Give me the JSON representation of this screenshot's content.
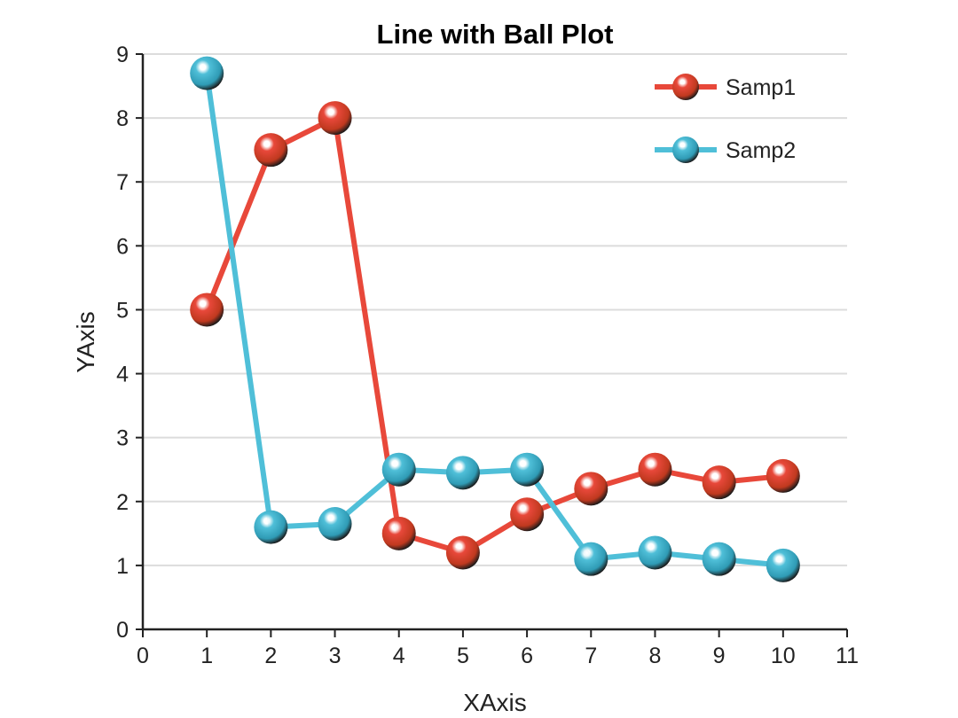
{
  "chart_data": {
    "type": "line",
    "title": "Line with Ball Plot",
    "xlabel": "XAxis",
    "ylabel": "YAxis",
    "xlim": [
      0,
      11
    ],
    "ylim": [
      0,
      9
    ],
    "xticks": [
      "0",
      "1",
      "2",
      "3",
      "4",
      "5",
      "6",
      "7",
      "8",
      "9",
      "10",
      "11"
    ],
    "yticks": [
      "0",
      "1",
      "2",
      "3",
      "4",
      "5",
      "6",
      "7",
      "8",
      "9"
    ],
    "grid": "horizontal",
    "legend_position": "top-right",
    "x": [
      1,
      2,
      3,
      4,
      5,
      6,
      7,
      8,
      9,
      10
    ],
    "series": [
      {
        "name": "Samp1",
        "color": "#e8483a",
        "ball_color": "#c0391f",
        "values": [
          5.0,
          7.5,
          8.0,
          1.5,
          1.2,
          1.8,
          2.2,
          2.5,
          2.3,
          2.4
        ]
      },
      {
        "name": "Samp2",
        "color": "#4fbfd8",
        "ball_color": "#2f9bb5",
        "values": [
          8.7,
          1.6,
          1.65,
          2.5,
          2.45,
          2.5,
          1.1,
          1.2,
          1.1,
          1.0
        ]
      }
    ]
  }
}
